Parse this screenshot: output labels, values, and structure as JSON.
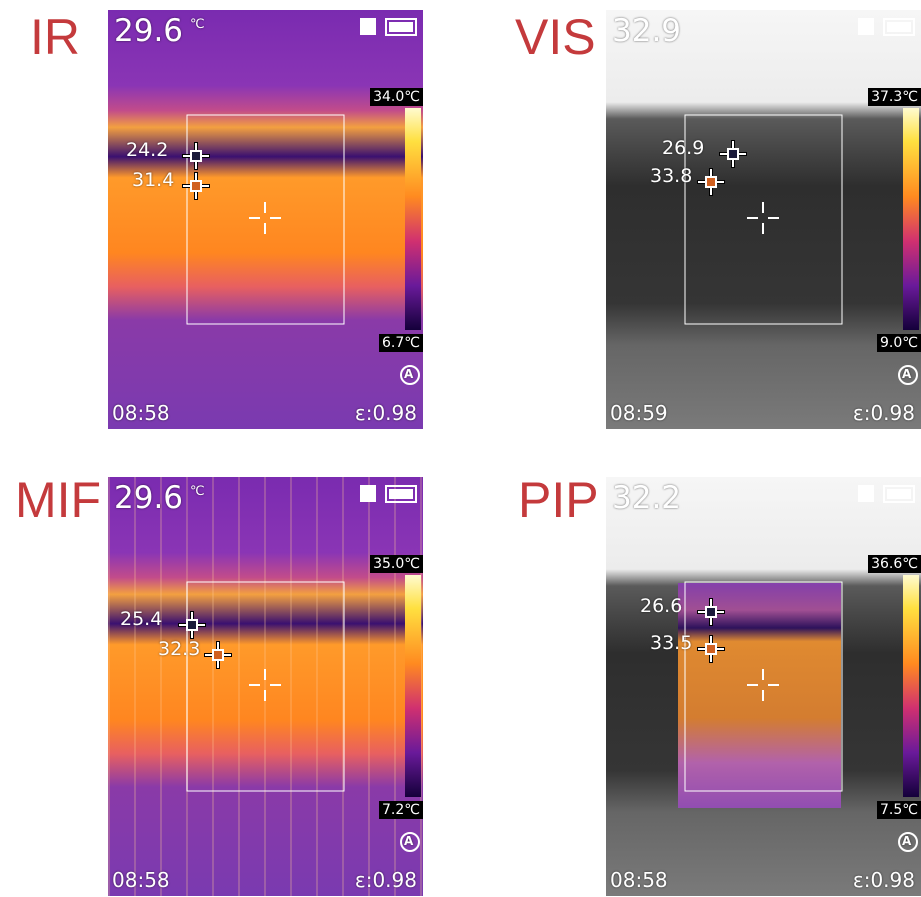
{
  "panels": [
    {
      "label": "IR",
      "center_temp": "29.6",
      "unit": "℃",
      "scale_max": "34.0℃",
      "scale_min": "6.7℃",
      "spots": [
        "24.2",
        "31.4"
      ],
      "time": "08:58",
      "emissivity": "ε:0.98",
      "auto": "A"
    },
    {
      "label": "VIS",
      "center_temp": "32.9",
      "scale_max": "37.3℃",
      "scale_min": "9.0℃",
      "spots": [
        "26.9",
        "33.8"
      ],
      "time": "08:59",
      "emissivity": "ε:0.98",
      "auto": "A"
    },
    {
      "label": "MIF",
      "center_temp": "29.6",
      "unit": "℃",
      "scale_max": "35.0℃",
      "scale_min": "7.2℃",
      "spots": [
        "25.4",
        "32.3"
      ],
      "time": "08:58",
      "emissivity": "ε:0.98",
      "auto": "A"
    },
    {
      "label": "PIP",
      "center_temp": "32.2",
      "scale_max": "36.6℃",
      "scale_min": "7.5℃",
      "spots": [
        "26.6",
        "33.5"
      ],
      "time": "08:58",
      "emissivity": "ε:0.98",
      "auto": "A"
    }
  ]
}
